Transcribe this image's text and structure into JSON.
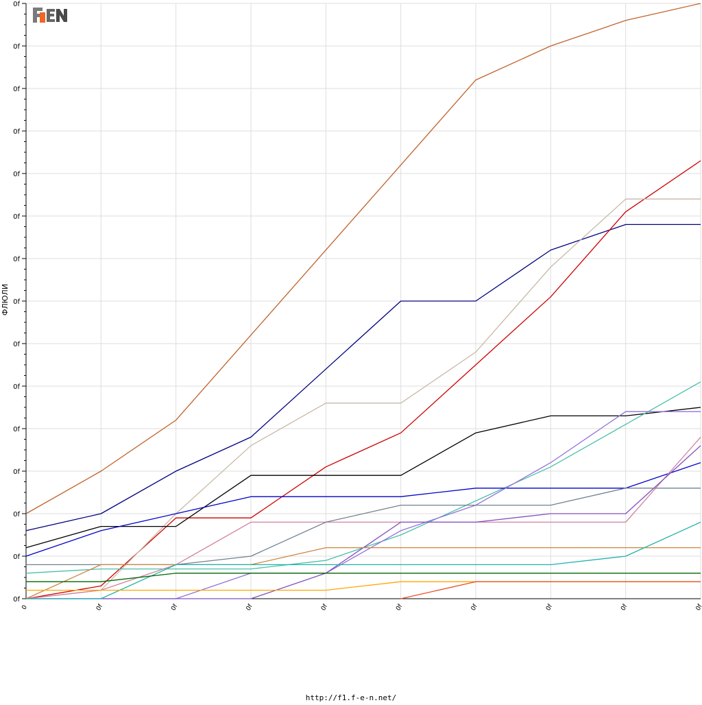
{
  "logo": {
    "text": "F1EN",
    "colors": {
      "f": "#f26522",
      "one": "#8a8a8a",
      "en": "#555555"
    }
  },
  "footer": {
    "url": "http://f1.f-e-n.net/"
  },
  "chart_data": {
    "type": "line",
    "title": "",
    "xlabel": "",
    "ylabel": "ФЛЮЛИ",
    "x": [
      0,
      1,
      2,
      3,
      4,
      5,
      6,
      7,
      8,
      9
    ],
    "x_tick_labels": [
      "0",
      "0f",
      "0f",
      "0f",
      "0f",
      "0f",
      "0f",
      "0f",
      "0f",
      "0f"
    ],
    "y_tick_labels": [
      "0f",
      "0f",
      "0f",
      "0f",
      "0f",
      "0f",
      "0f",
      "0f",
      "0f",
      "0f",
      "0f",
      "0f",
      "0f",
      "0f",
      "0f"
    ],
    "xlim": [
      0,
      9
    ],
    "ylim": [
      0,
      140
    ],
    "grid": true,
    "series": [
      {
        "color": "#c0622a",
        "values": [
          20,
          30,
          42,
          62,
          82,
          102,
          122,
          130,
          136,
          140
        ]
      },
      {
        "color": "#000080",
        "values": [
          16,
          20,
          30,
          38,
          54,
          70,
          70,
          82,
          88,
          88
        ]
      },
      {
        "color": "#cc0000",
        "values": [
          0,
          3,
          19,
          19,
          31,
          39,
          55,
          71,
          91,
          103
        ]
      },
      {
        "color": "#c8b8a8",
        "values": [
          0,
          2,
          20,
          36,
          46,
          46,
          58,
          78,
          94,
          94
        ]
      },
      {
        "color": "#000000",
        "values": [
          12,
          17,
          17,
          29,
          29,
          29,
          39,
          43,
          43,
          45
        ]
      },
      {
        "color": "#48c0a8",
        "values": [
          6,
          7,
          7,
          7,
          9,
          15,
          23,
          31,
          41,
          51
        ]
      },
      {
        "color": "#0000cc",
        "values": [
          10,
          16,
          20,
          24,
          24,
          24,
          26,
          26,
          26,
          32
        ]
      },
      {
        "color": "#9370db",
        "values": [
          0,
          0,
          0,
          6,
          6,
          16,
          22,
          32,
          44,
          44
        ]
      },
      {
        "color": "#d080a0",
        "values": [
          0,
          2,
          8,
          18,
          18,
          18,
          18,
          18,
          18,
          38
        ]
      },
      {
        "color": "#8050c0",
        "values": [
          0,
          0,
          0,
          0,
          6,
          18,
          18,
          20,
          20,
          36
        ]
      },
      {
        "color": "#708090",
        "values": [
          8,
          8,
          8,
          10,
          18,
          22,
          22,
          22,
          26,
          26
        ]
      },
      {
        "color": "#cd853f",
        "values": [
          0,
          8,
          8,
          8,
          12,
          12,
          12,
          12,
          12,
          12
        ]
      },
      {
        "color": "#20b2aa",
        "values": [
          0,
          0,
          8,
          8,
          8,
          8,
          8,
          8,
          10,
          18
        ]
      },
      {
        "color": "#006400",
        "values": [
          4,
          4,
          6,
          6,
          6,
          6,
          6,
          6,
          6,
          6
        ]
      },
      {
        "color": "#ffa500",
        "values": [
          2,
          2,
          2,
          2,
          2,
          4,
          4,
          4,
          4,
          4
        ]
      },
      {
        "color": "#e85020",
        "values": [
          null,
          null,
          null,
          null,
          null,
          0,
          4,
          4,
          4,
          4
        ]
      }
    ]
  }
}
